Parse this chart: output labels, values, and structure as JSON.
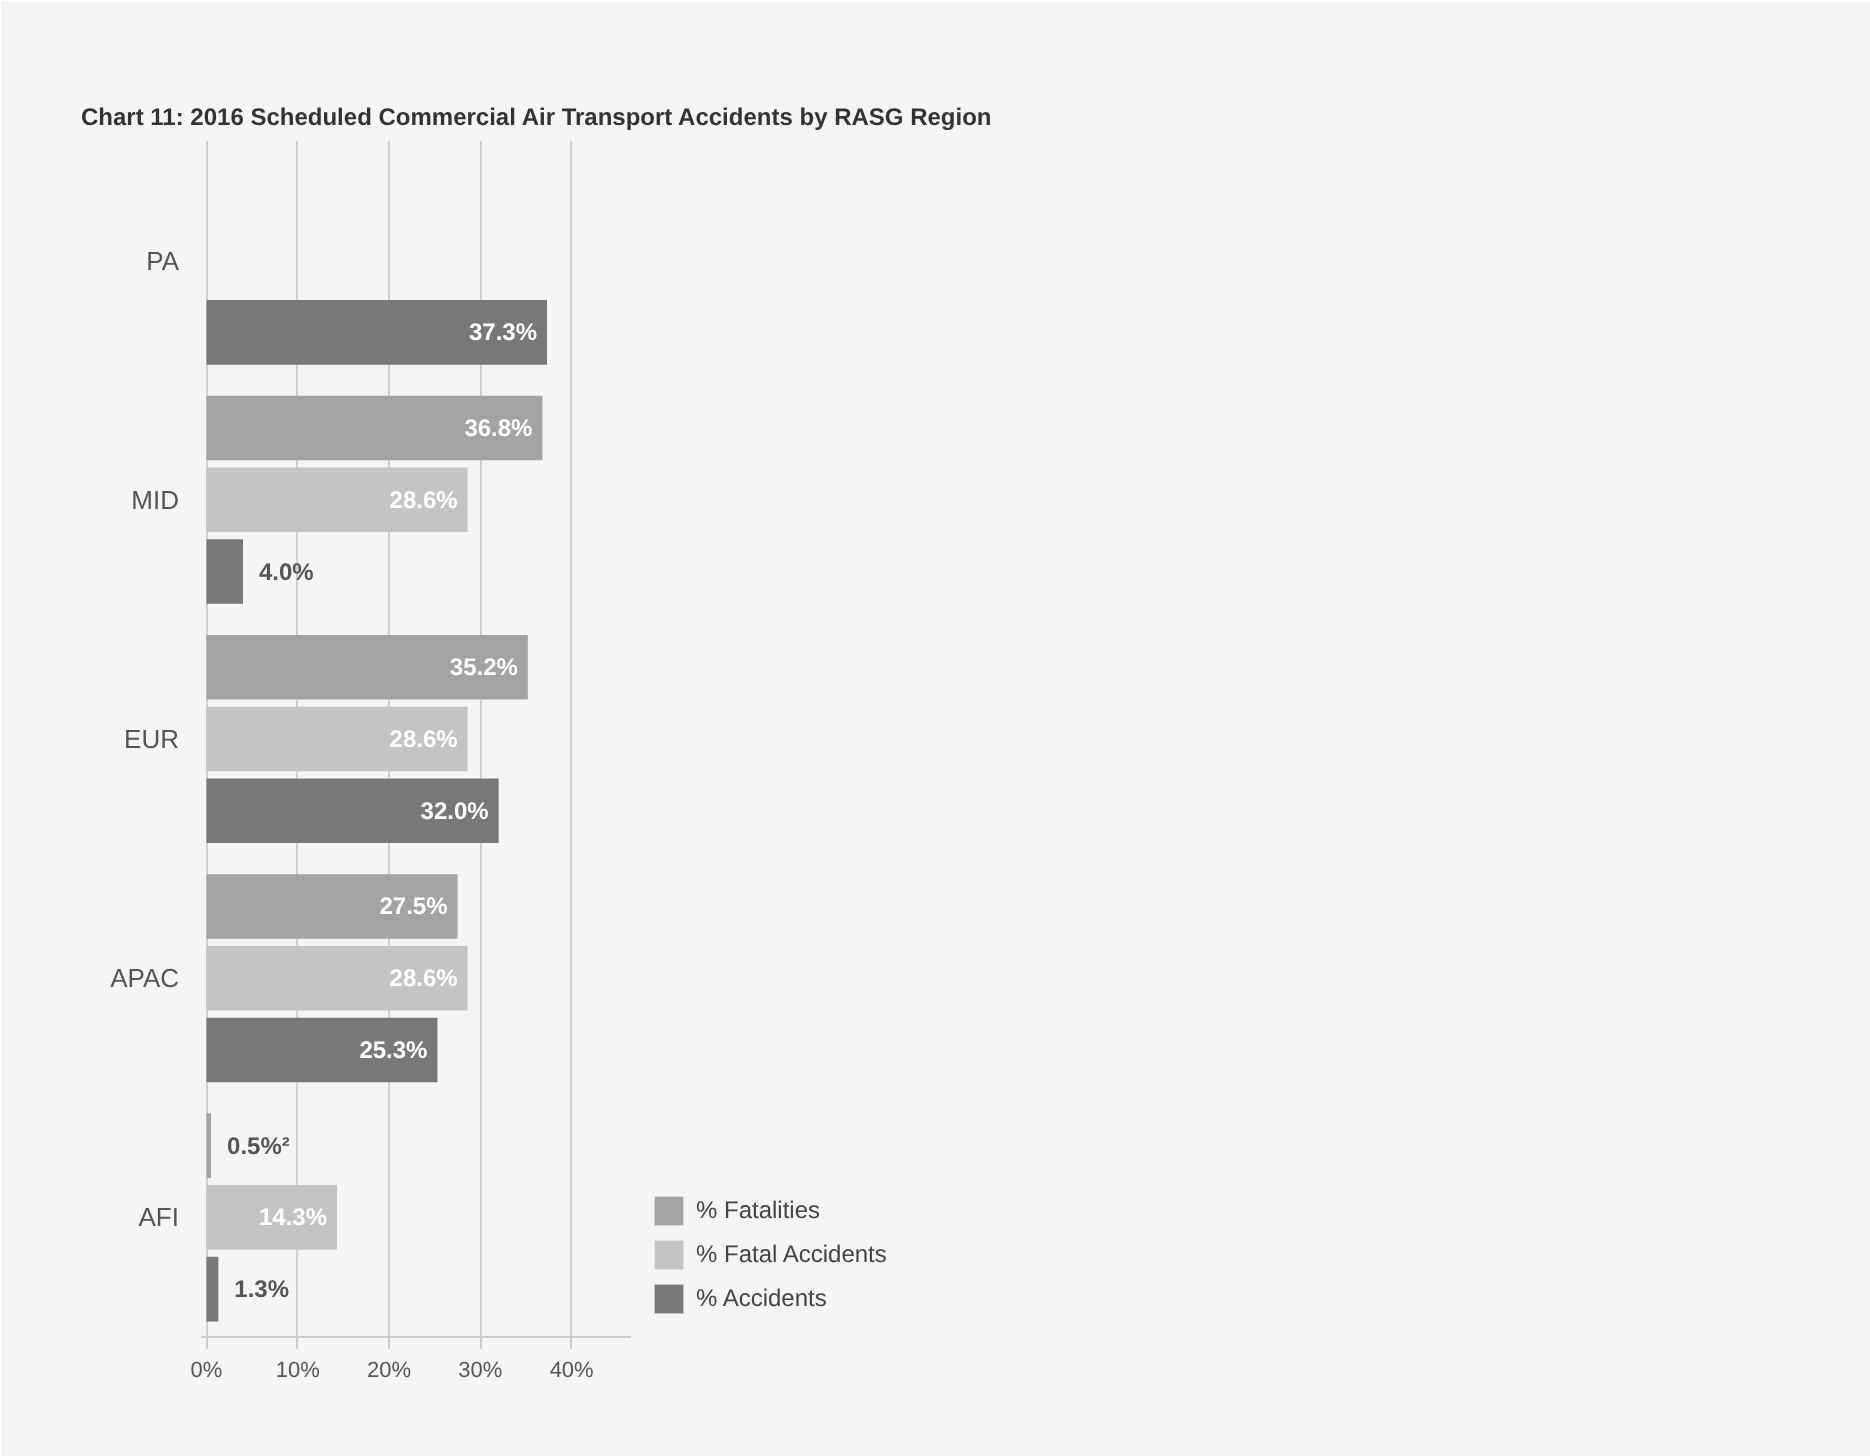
{
  "chart_data": {
    "type": "bar",
    "orientation": "horizontal",
    "title": "Chart 11: 2016 Scheduled Commercial Air Transport Accidents by RASG Region",
    "categories": [
      "PA",
      "MID",
      "EUR",
      "APAC",
      "AFI"
    ],
    "series": [
      {
        "name": "% Fatalities",
        "color": "#a3a3a3",
        "values": [
          null,
          36.8,
          35.2,
          27.5,
          0.5
        ],
        "value_labels": [
          null,
          "36.8%",
          "35.2%",
          "27.5%",
          "0.5%²"
        ]
      },
      {
        "name": "% Fatal Accidents",
        "color": "#c4c4c4",
        "values": [
          null,
          28.6,
          28.6,
          28.6,
          14.3
        ],
        "value_labels": [
          null,
          "28.6%",
          "28.6%",
          "28.6%",
          "14.3%"
        ]
      },
      {
        "name": "% Accidents",
        "color": "#787878",
        "values": [
          37.3,
          4.0,
          32.0,
          25.3,
          1.3
        ],
        "value_labels": [
          "37.3%",
          "4.0%",
          "32.0%",
          "25.3%",
          "1.3%"
        ]
      }
    ],
    "xlim": [
      -0.6,
      46.5
    ],
    "xticks": [
      {
        "value": 0,
        "label": "0%"
      },
      {
        "value": 10,
        "label": "10%"
      },
      {
        "value": 20,
        "label": "20%"
      },
      {
        "value": 30,
        "label": "30%"
      },
      {
        "value": 40,
        "label": "40%"
      }
    ],
    "grid": "x",
    "legend": "bottom right"
  }
}
